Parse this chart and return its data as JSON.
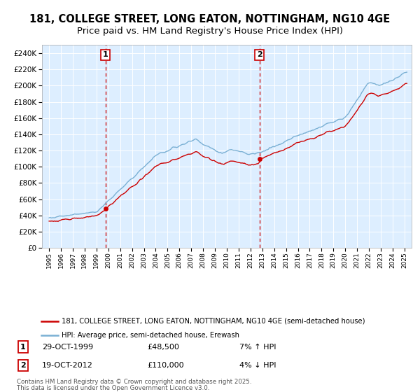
{
  "title": "181, COLLEGE STREET, LONG EATON, NOTTINGHAM, NG10 4GE",
  "subtitle": "Price paid vs. HM Land Registry's House Price Index (HPI)",
  "legend_entry1": "181, COLLEGE STREET, LONG EATON, NOTTINGHAM, NG10 4GE (semi-detached house)",
  "legend_entry2": "HPI: Average price, semi-detached house, Erewash",
  "footnote1": "Contains HM Land Registry data © Crown copyright and database right 2025.",
  "footnote2": "This data is licensed under the Open Government Licence v3.0.",
  "sale1_label": "1",
  "sale1_date": "29-OCT-1999",
  "sale1_price": "£48,500",
  "sale1_hpi": "7% ↑ HPI",
  "sale2_label": "2",
  "sale2_date": "19-OCT-2012",
  "sale2_price": "£110,000",
  "sale2_hpi": "4% ↓ HPI",
  "sale1_year": 1999.75,
  "sale1_price_val": 48500,
  "sale2_year": 2012.75,
  "sale2_price_val": 110000,
  "plot_bg_color": "#ddeeff",
  "line_color_price": "#cc0000",
  "line_color_hpi": "#7ab0d4",
  "vline_color": "#cc0000",
  "marker_color": "#cc0000",
  "ylim_min": 0,
  "ylim_max": 250000,
  "xlim_min": 1994.4,
  "xlim_max": 2025.6,
  "title_fontsize": 10.5,
  "subtitle_fontsize": 9.5
}
